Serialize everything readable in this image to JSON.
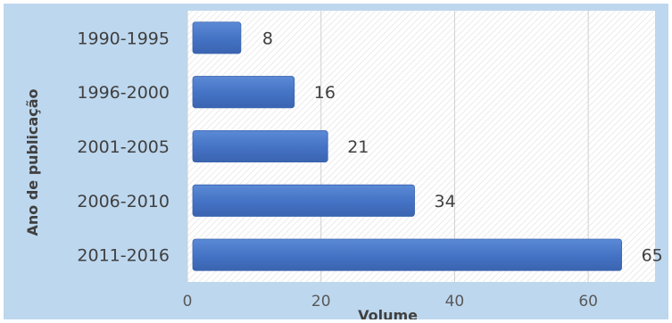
{
  "chart_data": {
    "type": "bar",
    "orientation": "horizontal",
    "title": "",
    "xlabel": "Volume",
    "ylabel": "Ano de publicação",
    "categories": [
      "1990-1995",
      "1996-2000",
      "2001-2005",
      "2006-2010",
      "2011-2016"
    ],
    "values": [
      8,
      16,
      21,
      34,
      65
    ],
    "xlim": [
      0,
      70
    ],
    "xticks": [
      0,
      20,
      40,
      60
    ],
    "grid": true,
    "legend": "none",
    "colors": {
      "bar": "#4472c4",
      "frame_background": "#bdd7ee",
      "plot_background": "#ffffff",
      "text": "#404040"
    }
  }
}
